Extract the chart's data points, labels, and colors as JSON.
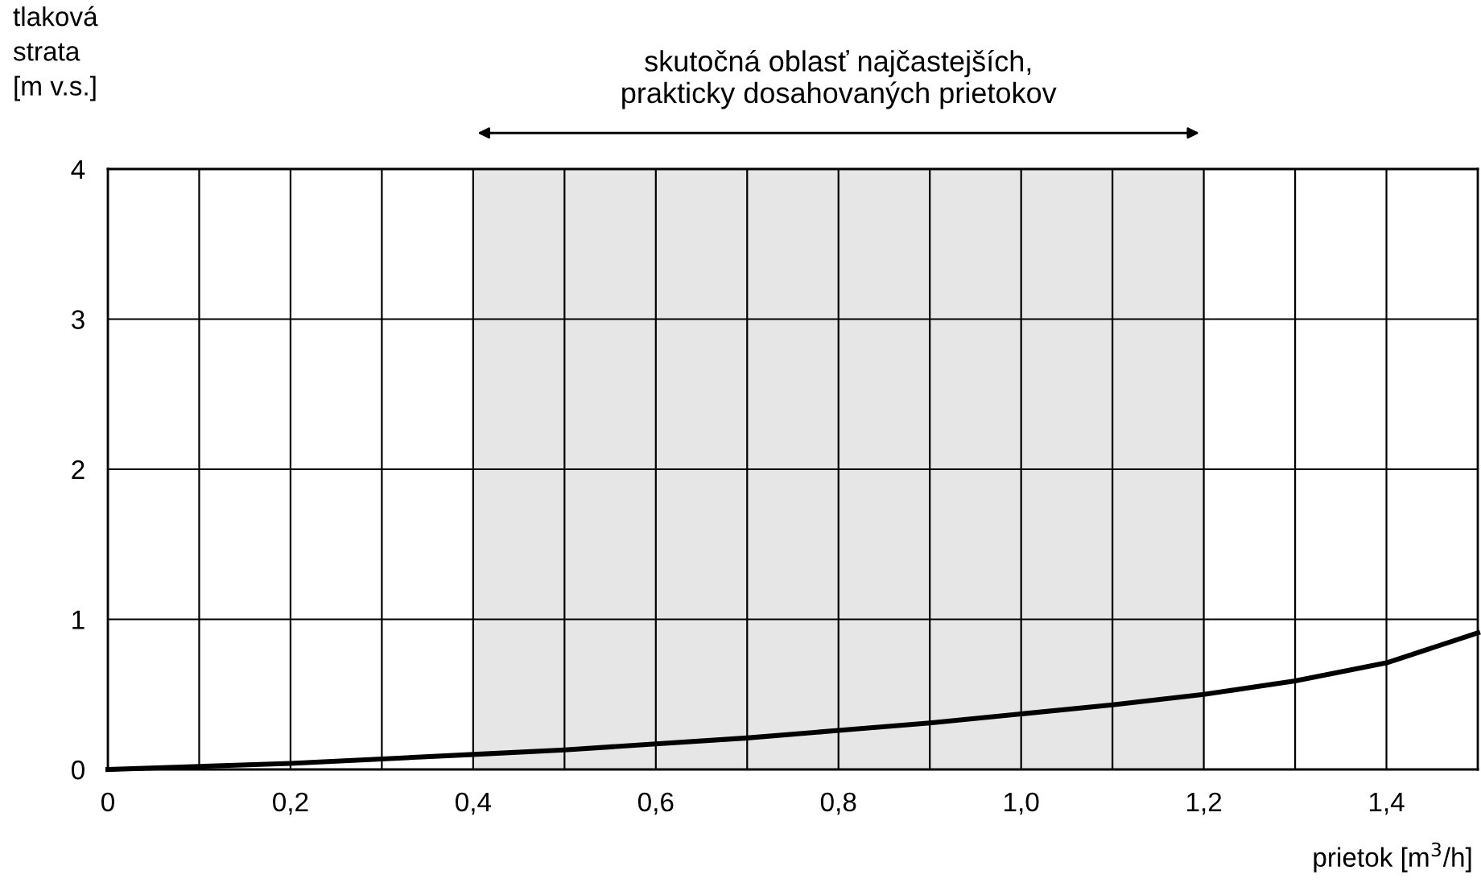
{
  "chart_data": {
    "type": "line",
    "xlabel": "prietok [m$^{3}$/h]",
    "ylabel": "tlaková\nstrata\n[m v.s.]",
    "x": [
      0,
      0.1,
      0.2,
      0.3,
      0.4,
      0.5,
      0.6,
      0.7,
      0.8,
      0.9,
      1.0,
      1.1,
      1.2,
      1.3,
      1.4,
      1.5
    ],
    "series": [
      {
        "color": "#000000",
        "values": [
          0,
          0.02,
          0.04,
          0.07,
          0.1,
          0.13,
          0.17,
          0.21,
          0.26,
          0.31,
          0.37,
          0.43,
          0.5,
          0.59,
          0.71,
          0.91
        ]
      }
    ],
    "xlim": [
      0,
      1.5
    ],
    "ylim": [
      0,
      4
    ],
    "xticks": [
      0,
      {
        "value": 0.1,
        "label": null
      },
      {
        "value": 0.2,
        "label": "0,2"
      },
      {
        "value": 0.3,
        "label": null
      },
      {
        "value": 0.4,
        "label": "0,4"
      },
      {
        "value": 0.5,
        "label": null
      },
      {
        "value": 0.6,
        "label": "0,6"
      },
      {
        "value": 0.7,
        "label": null
      },
      {
        "value": 0.8,
        "label": "0,8"
      },
      {
        "value": 0.9,
        "label": null
      },
      {
        "value": 1.0,
        "label": "1,0"
      },
      {
        "value": 1.1,
        "label": null
      },
      {
        "value": 1.2,
        "label": "1,2"
      },
      {
        "value": 1.3,
        "label": null
      },
      {
        "value": 1.4,
        "label": "1,4"
      }
    ],
    "yticks": [
      0,
      1,
      2,
      3,
      4
    ],
    "bands": [
      {
        "axis": "x",
        "from": 0.4,
        "to": 1.2,
        "label": "skutočná oblasť najčastejších,\nprakticky dosahovaných prietokov",
        "color": "#e6e6e6"
      }
    ],
    "grid": true,
    "marker": "none",
    "line_style": "solid"
  }
}
